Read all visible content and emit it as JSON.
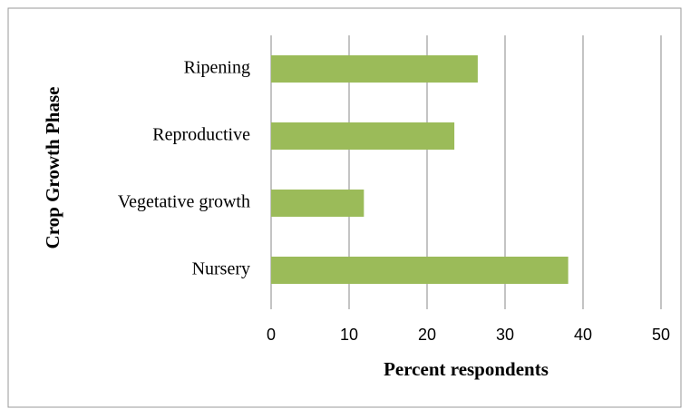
{
  "chart_data": {
    "type": "bar",
    "orientation": "horizontal",
    "categories": [
      "Nursery",
      "Vegetative growth",
      "Reproductive",
      "Ripening"
    ],
    "values": [
      38.1,
      11.9,
      23.5,
      26.5
    ],
    "color": "#9bbb59",
    "xlim": [
      0,
      50
    ],
    "xticks": [
      0,
      10,
      20,
      30,
      40,
      50
    ],
    "xlabel": "Percent respondents",
    "ylabel": "Crop Growth Phase",
    "grid": true
  }
}
